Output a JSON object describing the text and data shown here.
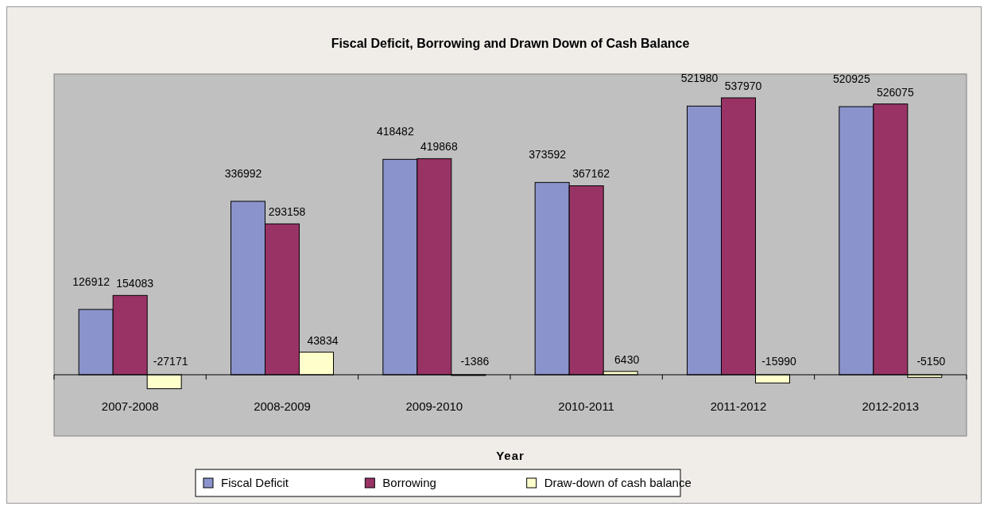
{
  "chart_data": {
    "type": "bar",
    "title": "Fiscal Deficit, Borrowing and Drawn Down of Cash Balance",
    "xlabel": "Year",
    "categories": [
      "2007-2008",
      "2008-2009",
      "2009-2010",
      "2010-2011",
      "2011-2012",
      "2012-2013"
    ],
    "series": [
      {
        "name": "Fiscal Deficit",
        "color": "#8b93cc",
        "values": [
          126912,
          336992,
          418482,
          373592,
          521980,
          520925
        ]
      },
      {
        "name": "Borrowing",
        "color": "#993366",
        "values": [
          154083,
          293158,
          419868,
          367162,
          537970,
          526075
        ]
      },
      {
        "name": "Draw-down of cash balance",
        "color": "#ffffcc",
        "values": [
          -27171,
          43834,
          -1386,
          6430,
          -15990,
          -5150
        ]
      }
    ],
    "data_labels": true,
    "legend": "bottom"
  }
}
